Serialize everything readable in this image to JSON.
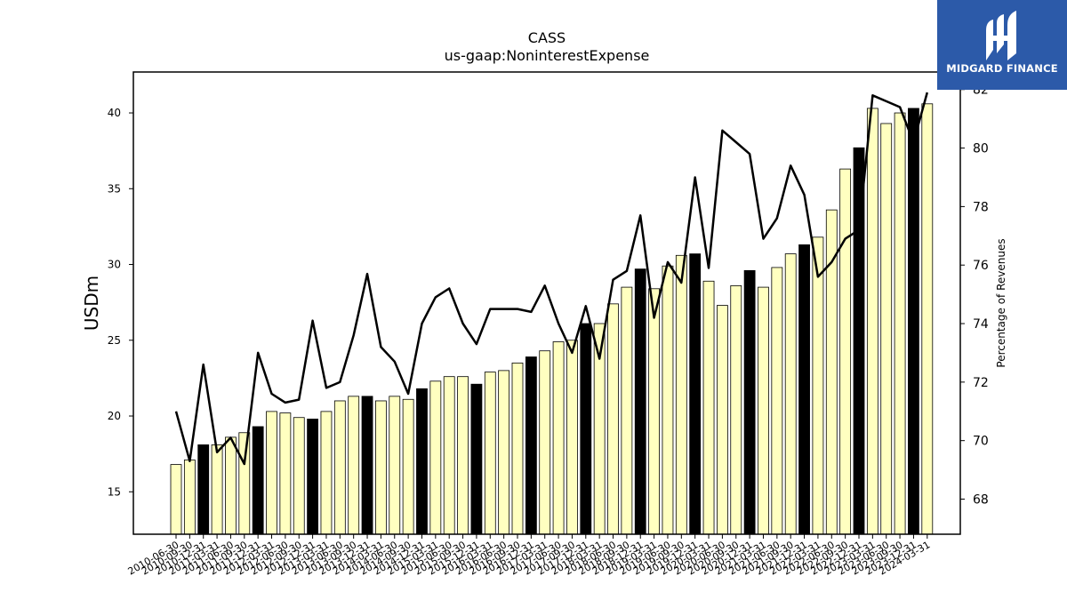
{
  "chart_data": {
    "type": "bar",
    "title": "CASS",
    "subtitle": "us-gaap:NoninterestExpense",
    "ylabel": "USDm",
    "y2label": "Percentage of Revenues",
    "ylim": [
      12.2,
      42.7
    ],
    "y2lim": [
      66.8,
      82.6
    ],
    "yticks": [
      15,
      20,
      25,
      30,
      35,
      40
    ],
    "y2ticks": [
      68,
      70,
      72,
      74,
      76,
      78,
      80,
      82
    ],
    "colors": {
      "bar_default": "#ffffc0",
      "bar_highlight": "#000000",
      "line": "#000000"
    },
    "categories": [
      "2010-06-30",
      "2010-09-30",
      "2010-12-31",
      "2011-03-31",
      "2011-06-30",
      "2011-09-30",
      "2011-12-31",
      "2012-03-31",
      "2012-06-30",
      "2012-09-30",
      "2012-12-31",
      "2013-03-31",
      "2013-06-30",
      "2013-09-30",
      "2013-12-31",
      "2014-03-31",
      "2014-06-30",
      "2014-09-30",
      "2014-12-31",
      "2015-03-31",
      "2015-06-30",
      "2015-09-30",
      "2015-12-31",
      "2016-03-31",
      "2016-06-30",
      "2016-09-30",
      "2016-12-31",
      "2017-03-31",
      "2017-06-30",
      "2017-09-30",
      "2017-12-31",
      "2018-03-31",
      "2018-06-30",
      "2018-09-30",
      "2018-12-31",
      "2019-03-31",
      "2019-06-30",
      "2019-09-30",
      "2019-12-31",
      "2020-03-31",
      "2020-06-30",
      "2020-09-30",
      "2020-12-31",
      "2021-03-31",
      "2021-06-30",
      "2021-09-30",
      "2021-12-31",
      "2022-03-31",
      "2022-06-30",
      "2022-09-30",
      "2022-12-31",
      "2023-03-31",
      "2023-06-30",
      "2023-09-30",
      "2023-12-31",
      "2024-03-31"
    ],
    "series": [
      {
        "type": "bar",
        "values": [
          16.8,
          17.1,
          18.1,
          18.1,
          18.6,
          18.9,
          19.3,
          20.3,
          20.2,
          19.9,
          19.8,
          20.3,
          21.0,
          21.3,
          21.3,
          21.0,
          21.3,
          21.1,
          21.8,
          22.3,
          22.6,
          22.6,
          22.1,
          22.9,
          23.0,
          23.5,
          23.9,
          24.3,
          24.9,
          25.0,
          26.1,
          26.1,
          27.4,
          28.5,
          29.7,
          28.4,
          29.9,
          30.6,
          30.7,
          28.9,
          27.3,
          28.6,
          29.6,
          28.5,
          29.8,
          30.7,
          31.3,
          31.8,
          33.6,
          36.3,
          37.7,
          40.3,
          39.3,
          40.0,
          40.3,
          40.6
        ],
        "highlight": [
          false,
          false,
          true,
          false,
          false,
          false,
          true,
          false,
          false,
          false,
          true,
          false,
          false,
          false,
          true,
          false,
          false,
          false,
          true,
          false,
          false,
          false,
          true,
          false,
          false,
          false,
          true,
          false,
          false,
          false,
          true,
          false,
          false,
          false,
          true,
          false,
          false,
          false,
          true,
          false,
          false,
          false,
          true,
          false,
          false,
          false,
          true,
          false,
          false,
          false,
          true,
          false,
          false,
          false,
          true,
          false
        ]
      },
      {
        "type": "line",
        "axis": "right",
        "values": [
          71.0,
          69.3,
          72.6,
          69.6,
          70.1,
          69.2,
          73.0,
          71.6,
          71.3,
          71.4,
          74.1,
          71.8,
          72.0,
          73.6,
          75.7,
          73.2,
          72.7,
          71.6,
          74.0,
          74.9,
          75.2,
          74.0,
          73.3,
          74.5,
          74.5,
          74.5,
          74.4,
          75.3,
          74.0,
          73.0,
          74.6,
          72.8,
          75.5,
          75.8,
          77.7,
          74.2,
          76.1,
          75.4,
          79.0,
          75.9,
          80.6,
          80.2,
          79.8,
          76.9,
          77.6,
          79.4,
          78.4,
          75.6,
          76.1,
          76.9,
          77.2,
          81.8,
          81.6,
          81.4,
          80.2,
          81.9
        ]
      }
    ]
  },
  "logo": {
    "text": "MIDGARD FINANCE"
  }
}
